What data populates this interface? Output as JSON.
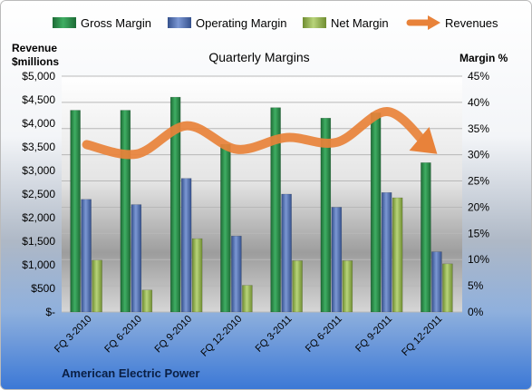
{
  "chart_data": {
    "type": "bar",
    "title": "Quarterly Margins",
    "company": "American Electric Power",
    "left_axis_title_line1": "Revenue",
    "left_axis_title_line2": "$millions",
    "right_axis_title": "Margin %",
    "categories": [
      "FQ 3-2010",
      "FQ 6-2010",
      "FQ 9-2010",
      "FQ 12-2010",
      "FQ 3-2011",
      "FQ 6-2011",
      "FQ 9-2011",
      "FQ 12-2011"
    ],
    "ylim_left": [
      0,
      5000
    ],
    "ylim_right": [
      0,
      45
    ],
    "left_ticks": [
      "$-",
      "$500",
      "$1,000",
      "$1,500",
      "$2,000",
      "$2,500",
      "$3,000",
      "$3,500",
      "$4,000",
      "$4,500",
      "$5,000"
    ],
    "right_ticks": [
      "0%",
      "5%",
      "10%",
      "15%",
      "20%",
      "25%",
      "30%",
      "35%",
      "40%",
      "45%"
    ],
    "legend_position": "top",
    "series": [
      {
        "name": "Gross Margin",
        "type": "bar",
        "axis": "right",
        "color": "#2e8b4a",
        "values": [
          38.5,
          38.5,
          41,
          32,
          39,
          37,
          38,
          28.5
        ]
      },
      {
        "name": "Operating Margin",
        "type": "bar",
        "axis": "right",
        "color": "#4f6fb0",
        "values": [
          21.5,
          20.5,
          25.5,
          14.5,
          22.5,
          20,
          22.8,
          11.5
        ]
      },
      {
        "name": "Net Margin",
        "type": "bar",
        "axis": "right",
        "color": "#9bbb59",
        "values": [
          9.9,
          4.2,
          14,
          5.1,
          9.8,
          9.8,
          21.8,
          9.2
        ]
      },
      {
        "name": "Revenues",
        "type": "line",
        "axis": "left",
        "color": "#e8823a",
        "values": [
          3550,
          3350,
          3950,
          3450,
          3700,
          3600,
          4250,
          3350
        ]
      }
    ]
  }
}
